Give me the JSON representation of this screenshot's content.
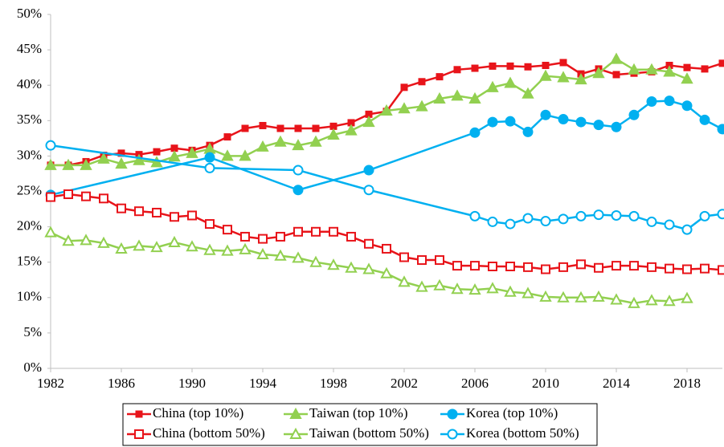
{
  "chart_data": {
    "type": "line",
    "x": [
      1982,
      1983,
      1984,
      1985,
      1986,
      1987,
      1988,
      1989,
      1990,
      1991,
      1992,
      1993,
      1994,
      1995,
      1996,
      1997,
      1998,
      1999,
      2000,
      2001,
      2002,
      2003,
      2004,
      2005,
      2006,
      2007,
      2008,
      2009,
      2010,
      2011,
      2012,
      2013,
      2014,
      2015,
      2016,
      2017,
      2018,
      2019,
      2020
    ],
    "xlim": [
      1982,
      2020
    ],
    "xticks": [
      1982,
      1986,
      1990,
      1994,
      1998,
      2002,
      2006,
      2010,
      2014,
      2018
    ],
    "ylim": [
      0,
      50
    ],
    "yticks": [
      {
        "value": 0,
        "label": "0%"
      },
      {
        "value": 5,
        "label": "5%"
      },
      {
        "value": 10,
        "label": "10%"
      },
      {
        "value": 15,
        "label": "15%"
      },
      {
        "value": 20,
        "label": "20%"
      },
      {
        "value": 25,
        "label": "25%"
      },
      {
        "value": 30,
        "label": "30%"
      },
      {
        "value": 35,
        "label": "35%"
      },
      {
        "value": 40,
        "label": "40%"
      },
      {
        "value": 45,
        "label": "45%"
      },
      {
        "value": 50,
        "label": "50%"
      }
    ],
    "grid": false,
    "legend": "bottom",
    "series": [
      {
        "name": "China (top 10%)",
        "color": "#e8141a",
        "marker": "square",
        "filled": true,
        "values": [
          28.7,
          28.7,
          29.2,
          30.1,
          30.4,
          30.2,
          30.6,
          31.1,
          30.8,
          31.5,
          32.7,
          33.9,
          34.3,
          33.9,
          33.9,
          33.9,
          34.2,
          34.7,
          35.9,
          36.3,
          39.7,
          40.5,
          41.2,
          42.2,
          42.4,
          42.7,
          42.7,
          42.6,
          42.8,
          43.2,
          41.6,
          42.3,
          41.5,
          41.7,
          41.9,
          42.8,
          42.5,
          42.3,
          43.1
        ]
      },
      {
        "name": "Taiwan (top 10%)",
        "color": "#92d050",
        "marker": "triangle",
        "filled": true,
        "values": [
          28.7,
          28.7,
          28.7,
          29.6,
          28.9,
          29.4,
          29.1,
          29.9,
          30.4,
          31.0,
          30.0,
          30.0,
          31.3,
          32.0,
          31.5,
          32.0,
          33.0,
          33.6,
          34.8,
          36.4,
          36.7,
          37.0,
          38.1,
          38.5,
          38.1,
          39.7,
          40.3,
          38.8,
          41.3,
          41.1,
          40.8,
          41.7,
          43.7,
          42.2,
          42.2,
          41.9,
          40.9,
          null,
          null
        ]
      },
      {
        "name": "Korea (top 10%)",
        "color": "#00b0f0",
        "marker": "circle",
        "filled": true,
        "x": [
          1982,
          1991,
          1996,
          2000,
          2006,
          2007,
          2008,
          2009,
          2010,
          2011,
          2012,
          2013,
          2014,
          2015,
          2016,
          2017,
          2018,
          2019,
          2020
        ],
        "values": [
          24.5,
          29.8,
          25.2,
          28.0,
          33.3,
          34.8,
          34.9,
          33.4,
          35.8,
          35.2,
          34.8,
          34.4,
          34.1,
          35.8,
          37.7,
          37.8,
          37.1,
          35.1,
          33.8
        ]
      },
      {
        "name": "China (bottom 50%)",
        "color": "#e8141a",
        "marker": "square",
        "filled": false,
        "values": [
          24.2,
          24.6,
          24.3,
          24.0,
          22.6,
          22.2,
          22.0,
          21.4,
          21.6,
          20.4,
          19.6,
          18.6,
          18.3,
          18.6,
          19.3,
          19.3,
          19.3,
          18.6,
          17.6,
          16.9,
          15.7,
          15.3,
          15.3,
          14.5,
          14.5,
          14.4,
          14.4,
          14.3,
          14.0,
          14.3,
          14.7,
          14.2,
          14.5,
          14.5,
          14.3,
          14.1,
          14.0,
          14.1,
          13.9
        ]
      },
      {
        "name": "Taiwan (bottom 50%)",
        "color": "#92d050",
        "marker": "triangle",
        "filled": false,
        "values": [
          19.2,
          18.0,
          18.1,
          17.7,
          16.9,
          17.3,
          17.1,
          17.8,
          17.2,
          16.7,
          16.6,
          16.8,
          16.1,
          15.9,
          15.6,
          15.0,
          14.6,
          14.2,
          14.0,
          13.4,
          12.2,
          11.5,
          11.7,
          11.2,
          11.1,
          11.3,
          10.8,
          10.6,
          10.1,
          10.0,
          10.0,
          10.1,
          9.7,
          9.2,
          9.6,
          9.5,
          9.9,
          null,
          null
        ]
      },
      {
        "name": "Korea (bottom 50%)",
        "color": "#00b0f0",
        "marker": "circle",
        "filled": false,
        "x": [
          1982,
          1991,
          1996,
          2000,
          2006,
          2007,
          2008,
          2009,
          2010,
          2011,
          2012,
          2013,
          2014,
          2015,
          2016,
          2017,
          2018,
          2019,
          2020
        ],
        "values": [
          31.5,
          28.3,
          28.0,
          25.2,
          21.5,
          20.7,
          20.4,
          21.2,
          20.8,
          21.1,
          21.5,
          21.7,
          21.6,
          21.5,
          20.7,
          20.3,
          19.6,
          21.5,
          21.8
        ]
      }
    ]
  }
}
